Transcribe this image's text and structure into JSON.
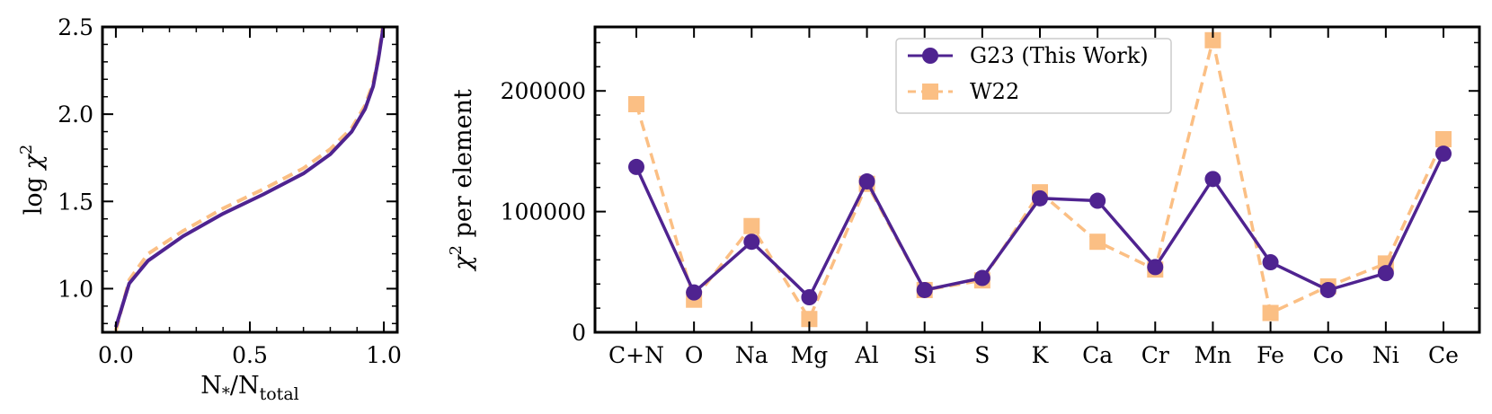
{
  "colors": {
    "g23": "#4f2390",
    "w22": "#fbbf84"
  },
  "chart_data": [
    {
      "type": "line",
      "xlabel_main": "N",
      "xlabel_sub1": "*",
      "xlabel_mid": "/N",
      "xlabel_sub2": "total",
      "ylabel_main": "log ",
      "ylabel_chi": "χ",
      "ylabel_sup": "2",
      "xlim": [
        -0.05,
        1.05
      ],
      "ylim": [
        0.75,
        2.5
      ],
      "xticks": [
        0.0,
        0.5,
        1.0
      ],
      "xtick_labels": [
        "0.0",
        "0.5",
        "1.0"
      ],
      "yticks": [
        1.0,
        1.5,
        2.0,
        2.5
      ],
      "ytick_labels": [
        "1.0",
        "1.5",
        "2.0",
        "2.5"
      ],
      "series": [
        {
          "style": "solid",
          "x": [
            0.0,
            0.05,
            0.12,
            0.25,
            0.4,
            0.55,
            0.7,
            0.8,
            0.88,
            0.93,
            0.96,
            0.98,
            0.99,
            1.0
          ],
          "y": [
            0.78,
            1.03,
            1.16,
            1.3,
            1.43,
            1.54,
            1.66,
            1.77,
            1.9,
            2.03,
            2.16,
            2.32,
            2.42,
            2.52
          ]
        },
        {
          "style": "dashed",
          "x": [
            0.0,
            0.05,
            0.12,
            0.25,
            0.4,
            0.55,
            0.7,
            0.8,
            0.88,
            0.93,
            0.96,
            0.98,
            0.99,
            1.0
          ],
          "y": [
            0.76,
            1.05,
            1.2,
            1.33,
            1.46,
            1.57,
            1.69,
            1.8,
            1.92,
            2.05,
            2.18,
            2.33,
            2.44,
            2.55
          ]
        }
      ]
    },
    {
      "type": "line",
      "ylabel_chi": "χ",
      "ylabel_sup": "2",
      "ylabel_rest": " per element",
      "categories": [
        "C+N",
        "O",
        "Na",
        "Mg",
        "Al",
        "Si",
        "S",
        "K",
        "Ca",
        "Cr",
        "Mn",
        "Fe",
        "Co",
        "Ni",
        "Ce"
      ],
      "ylim": [
        0,
        253000
      ],
      "yticks": [
        0,
        100000,
        200000
      ],
      "ytick_labels": [
        "0",
        "100000",
        "200000"
      ],
      "legend_placement": "upper-center",
      "series": [
        {
          "name": "G23 (This Work)",
          "style": "solid-circle",
          "values": [
            137000,
            33000,
            75000,
            29000,
            125000,
            35000,
            45000,
            111000,
            109000,
            54000,
            127000,
            58000,
            35000,
            49000,
            148000
          ]
        },
        {
          "name": "W22",
          "style": "dashed-square",
          "values": [
            189000,
            27000,
            88000,
            11000,
            123000,
            35000,
            43000,
            116000,
            75000,
            52000,
            242000,
            16000,
            38000,
            57000,
            160000
          ]
        }
      ]
    }
  ]
}
